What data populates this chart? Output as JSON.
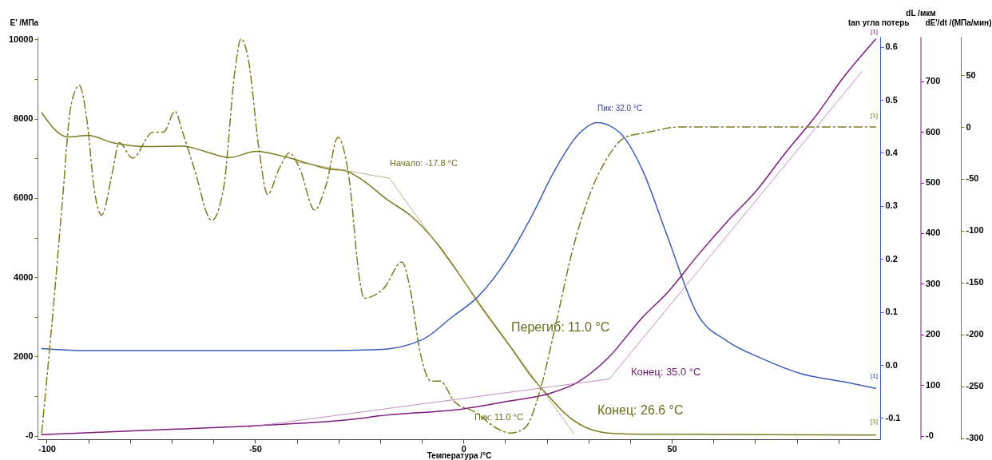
{
  "chart_data": [
    {
      "type": "line",
      "xlabel": "Температура /°C",
      "ylabel": "E' /МПа",
      "y2label": "tan угла потерь",
      "y3label": "dL /мкм",
      "xlim": [
        -102.2,
        100
      ],
      "xticks": [
        -100,
        {
          "value": -90,
          "label": null
        },
        {
          "value": -80,
          "label": null
        },
        {
          "value": -70,
          "label": null
        },
        {
          "value": -60,
          "label": null
        },
        -50,
        {
          "value": -40,
          "label": null
        },
        {
          "value": -30,
          "label": null
        },
        {
          "value": -20,
          "label": null
        },
        {
          "value": -10,
          "label": null
        },
        0,
        {
          "value": 10,
          "label": null
        },
        {
          "value": 20,
          "label": null
        },
        {
          "value": 30,
          "label": null
        },
        {
          "value": 40,
          "label": null
        },
        50,
        {
          "value": 60,
          "label": null
        },
        {
          "value": 70,
          "label": null
        },
        {
          "value": 80,
          "label": null
        },
        {
          "value": 90,
          "label": null
        }
      ],
      "ylim": [
        -87,
        10070
      ],
      "yticks": [
        {
          "value": 0,
          "label": "-0"
        },
        {
          "value": 1000,
          "label": null
        },
        2000,
        {
          "value": 3000,
          "label": null
        },
        4000,
        {
          "value": 5000,
          "label": null
        },
        6000,
        {
          "value": 7000,
          "label": null
        },
        8000,
        {
          "value": 9000,
          "label": null
        },
        10000
      ],
      "y2lim": [
        -0.14,
        0.619
      ],
      "y2ticks": [
        -0.1,
        {
          "value": 0,
          "label": "0.0"
        },
        0.1,
        0.2,
        0.3,
        0.4,
        0.5,
        0.6
      ],
      "y3lim": [
        -7,
        788
      ],
      "y3ticks": [
        {
          "value": 0,
          "label": "-0"
        },
        100,
        200,
        300,
        400,
        500,
        600,
        700
      ],
      "grid": false,
      "marker": "none",
      "series": [
        {
          "color": "#7b7b1f",
          "axis": "y",
          "x": [
            -101.2,
            -97.0,
            -94.9,
            -90.0,
            -84.3,
            -75.9,
            -67.4,
            -61.8,
            -56.2,
            -49.8,
            -42.1,
            -36.5,
            -32.2,
            -28.7,
            -24.9,
            -18.3,
            -12.6,
            -6.3,
            -0.7,
            5.0,
            11.1,
            16.2,
            20.5,
            25.4,
            30.3,
            35.9,
            43.0,
            49.2,
            98.9
          ],
          "values": [
            8150,
            7630,
            7540,
            7580,
            7400,
            7300,
            7310,
            7170,
            7020,
            7180,
            7020,
            6850,
            6730,
            6700,
            6500,
            5960,
            5550,
            4850,
            4030,
            3140,
            2270,
            1510,
            990,
            470,
            170,
            60,
            40,
            40,
            20
          ]
        },
        {
          "color": "#3b5cb8",
          "axis": "y2",
          "x": [
            -101.2,
            -90,
            -60,
            -34.5,
            -20.4,
            -9.8,
            -2.8,
            3.5,
            10.6,
            16.2,
            21.9,
            27.5,
            32.1,
            37.4,
            43.0,
            48.6,
            56.2,
            63.3,
            71.7,
            80.9,
            91.5,
            98.9
          ],
          "values": [
            0.031,
            0.027,
            0.027,
            0.027,
            0.029,
            0.048,
            0.09,
            0.129,
            0.201,
            0.278,
            0.367,
            0.434,
            0.457,
            0.439,
            0.367,
            0.25,
            0.095,
            0.045,
            0.012,
            -0.016,
            -0.032,
            -0.044
          ]
        },
        {
          "color": "#7d1a7d",
          "axis": "y3",
          "x": [
            -101.2,
            -68.8,
            -49.8,
            -24.9,
            -20.4,
            0,
            10.6,
            20.5,
            27.5,
            34.5,
            43.0,
            49.2,
            56.2,
            63.3,
            70.3,
            77.4,
            84.4,
            91.5,
            98.9
          ],
          "values": [
            2,
            13,
            20,
            34,
            39,
            53,
            68,
            83,
            106,
            152,
            234,
            285,
            356,
            423,
            484,
            560,
            630,
            711,
            783
          ]
        },
        {
          "type": "line",
          "color": "#a3a35a",
          "axis": "y",
          "x": [
            -40,
            -17.8
          ],
          "values": [
            6910,
            6500
          ]
        },
        {
          "type": "line",
          "color": "#a3a35a",
          "axis": "y",
          "x": [
            -17.8,
            26.6
          ],
          "values": [
            6500,
            40
          ]
        },
        {
          "type": "line",
          "color": "#b36db3",
          "axis": "y3",
          "x": [
            -51.6,
            35.0
          ],
          "values": [
            17,
            112
          ]
        },
        {
          "type": "line",
          "color": "#b36db3",
          "axis": "y3",
          "x": [
            35.0,
            95.7
          ],
          "values": [
            112,
            720
          ]
        }
      ],
      "annotations": [
        "Начало: -17.8 °C",
        "Пик: 32.0 °C",
        "Перегиб: 11.0 °C",
        "Конец: 35.0 °C",
        "Конец: 26.6 °C",
        "Пик: 11.0 °C",
        "[1]",
        "[1]",
        "[1]",
        "[1]"
      ]
    },
    {
      "type": "line",
      "ylabel": "dE'/dt /(МПа/мин)",
      "xlim": [
        -102.2,
        100
      ],
      "ylim": [
        -301,
        87
      ],
      "yticks": [
        -300,
        -250,
        -200,
        -150,
        -100,
        -50,
        0,
        50
      ],
      "tick_labels": "y",
      "marker": "none",
      "line_style": "dashed",
      "series": [
        {
          "color": "#7b7b1f",
          "x": [
            -101.2,
            -98.1,
            -96.3,
            -94.2,
            -92.2,
            -90.3,
            -88.6,
            -86.8,
            -84.3,
            -82.6,
            -79.4,
            -74.5,
            -72.0,
            -69.2,
            -67.4,
            -64.6,
            -60.4,
            -57.6,
            -54.8,
            -53.4,
            -51.6,
            -49.1,
            -47.0,
            -44.2,
            -41.7,
            -39.3,
            -35.7,
            -32.9,
            -30.1,
            -27.6,
            -24.8,
            -23.9,
            -19.0,
            -14.8,
            -12.6,
            -10.5,
            -7.7,
            -5.6,
            -2.1,
            2.9,
            7.8,
            11.3,
            14.8,
            18.3,
            21.9,
            26.1,
            30.3,
            34.5,
            38.8,
            44.4,
            51.8,
            98.9
          ],
          "values": [
            -295,
            -160,
            -75,
            20,
            40,
            5,
            -60,
            -85,
            -45,
            -15,
            -30,
            -5,
            -5,
            15,
            -5,
            -40,
            -90,
            -60,
            55,
            85,
            65,
            -20,
            -65,
            -40,
            -25,
            -40,
            -80,
            -55,
            -10,
            -45,
            -150,
            -165,
            -155,
            -130,
            -160,
            -215,
            -245,
            -245,
            -265,
            -275,
            -290,
            -295,
            -290,
            -255,
            -195,
            -120,
            -65,
            -30,
            -10,
            -5,
            0,
            0
          ]
        }
      ]
    }
  ]
}
